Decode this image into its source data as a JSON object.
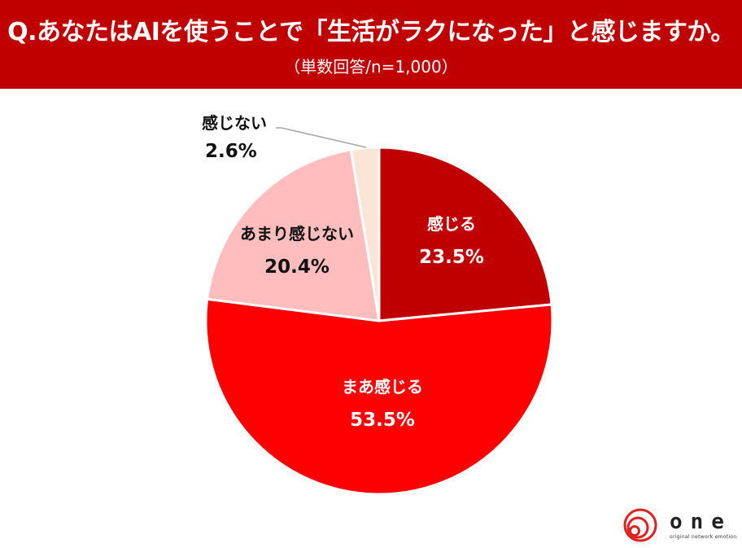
{
  "header": {
    "title": "Q.あなたはAIを使うことで「生活がラクになった」と感じますか。",
    "subtitle": "（単数回答/n=1,000）",
    "background_color": "#C00000"
  },
  "chart_data": {
    "type": "pie",
    "title": "Q.あなたはAIを使うことで「生活がラクになった」と感じますか。",
    "subtitle": "（単数回答/n=1,000）",
    "start_angle": "12 o'clock",
    "direction": "clockwise",
    "categories": [
      "感じる",
      "まあ感じる",
      "あまり感じない",
      "感じない"
    ],
    "values": [
      23.5,
      53.5,
      20.4,
      2.6
    ],
    "unit": "%",
    "colors": [
      "#C00000",
      "#FF0000",
      "#FFBDBD",
      "#FBE5D6"
    ],
    "labels": [
      {
        "name": "感じる",
        "pct": "23.5%"
      },
      {
        "name": "まあ感じる",
        "pct": "53.5%"
      },
      {
        "name": "あまり感じない",
        "pct": "20.4%"
      },
      {
        "name": "感じない",
        "pct": "2.6%"
      }
    ],
    "legend": "none (data labels on slices)"
  },
  "logo": {
    "word": "one",
    "tagline": "original network emotion",
    "icon": "spiral-circle-icon",
    "color": "#E02020"
  }
}
